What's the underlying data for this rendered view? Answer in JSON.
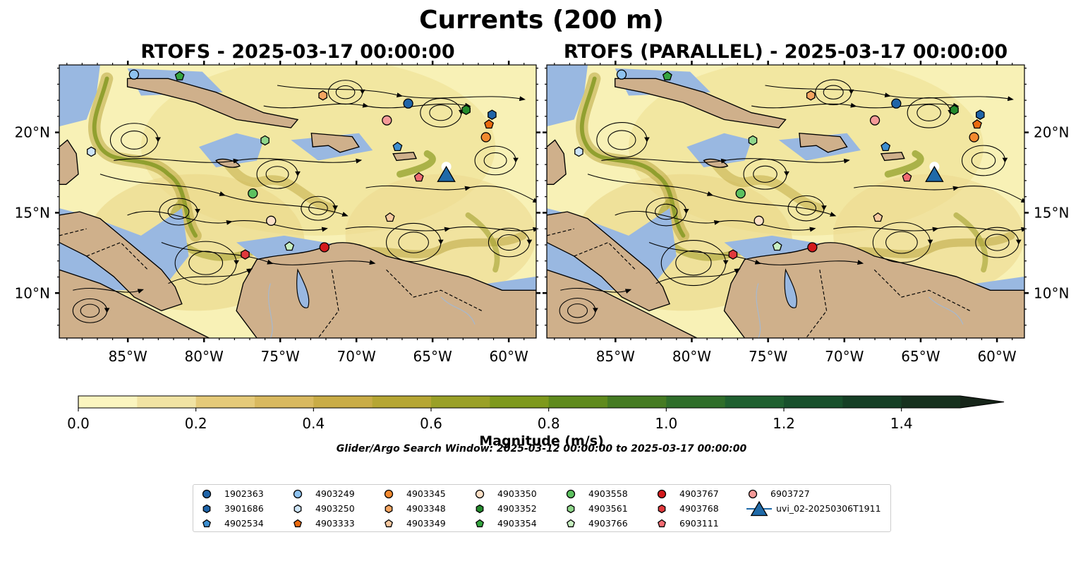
{
  "figure": {
    "suptitle": "Currents (200 m)",
    "panels": [
      {
        "title": "RTOFS - 2025-03-17 00:00:00"
      },
      {
        "title": "RTOFS (PARALLEL) - 2025-03-17 00:00:00"
      }
    ],
    "lon_ticks": [
      "85°W",
      "80°W",
      "75°W",
      "70°W",
      "65°W",
      "60°W"
    ],
    "lat_ticks": [
      "20°N",
      "15°N",
      "10°N"
    ],
    "extent": {
      "lon": [
        -89.5,
        -58.2
      ],
      "lat": [
        7.2,
        24.2
      ]
    },
    "colorbar": {
      "label": "Magnitude (m/s)",
      "ticks": [
        "0.0",
        "0.2",
        "0.4",
        "0.6",
        "0.8",
        "1.0",
        "1.2",
        "1.4"
      ],
      "range": [
        0,
        1.5
      ],
      "colors": [
        "#fbf5bf",
        "#f1e3a3",
        "#e5ca79",
        "#d9b95f",
        "#c9ac46",
        "#b6a633",
        "#9aa027",
        "#7e991d",
        "#5f8a1c",
        "#457b22",
        "#2f6e2a",
        "#1f6030",
        "#18502c",
        "#153f25",
        "#16311e",
        "#162519"
      ]
    },
    "search_window": "Glider/Argo Search Window: 2025-03-12 00:00:00 to 2025-03-17 00:00:00",
    "colors": {
      "land": "#cfb08b",
      "shallow": "#99b8e1",
      "ocean_low": "#f8f1b6",
      "ocean_mid": "#d7be68",
      "ocean_high": "#6f8f1e"
    }
  },
  "legend": [
    {
      "id": "1902363",
      "marker": "circle",
      "color": "#1f64a8"
    },
    {
      "id": "3901686",
      "marker": "hexagon",
      "color": "#1f64a8"
    },
    {
      "id": "4902534",
      "marker": "pentagon",
      "color": "#3d8fd0"
    },
    {
      "id": "4903249",
      "marker": "circle",
      "color": "#8ec2ef"
    },
    {
      "id": "4903250",
      "marker": "hexagon",
      "color": "#cde4f7"
    },
    {
      "id": "4903333",
      "marker": "pentagon",
      "color": "#ea6a0e"
    },
    {
      "id": "4903345",
      "marker": "circle",
      "color": "#f2892f"
    },
    {
      "id": "4903348",
      "marker": "hexagon",
      "color": "#f5a561"
    },
    {
      "id": "4903349",
      "marker": "pentagon",
      "color": "#f8c9a0"
    },
    {
      "id": "4903350",
      "marker": "circle",
      "color": "#fde0c6"
    },
    {
      "id": "4903352",
      "marker": "hexagon",
      "color": "#248a2c"
    },
    {
      "id": "4903354",
      "marker": "pentagon",
      "color": "#35a540"
    },
    {
      "id": "4903558",
      "marker": "circle",
      "color": "#5cc05f"
    },
    {
      "id": "4903561",
      "marker": "hexagon",
      "color": "#8fd68a"
    },
    {
      "id": "4903766",
      "marker": "pentagon",
      "color": "#c8efc1"
    },
    {
      "id": "4903767",
      "marker": "circle",
      "color": "#d3191c"
    },
    {
      "id": "4903768",
      "marker": "hexagon",
      "color": "#e0393c"
    },
    {
      "id": "6903111",
      "marker": "pentagon",
      "color": "#f26b72"
    },
    {
      "id": "6903727",
      "marker": "circle",
      "color": "#f59a98"
    },
    {
      "id": "uvi_02-20250306T1911",
      "marker": "triangle-line",
      "color": "#1f6aa8"
    }
  ],
  "glider_track": {
    "id": "uvi_02-20250306T1911",
    "lon": -64.1,
    "lat": 17.25
  },
  "floats": [
    {
      "id": "4903249",
      "lon": -84.6,
      "lat": 23.6
    },
    {
      "id": "4903354",
      "lon": -81.6,
      "lat": 23.5
    },
    {
      "id": "4903250",
      "lon": -87.4,
      "lat": 18.8
    },
    {
      "id": "4903348",
      "lon": -72.2,
      "lat": 22.3
    },
    {
      "id": "1902363",
      "lon": -66.6,
      "lat": 21.8
    },
    {
      "id": "4903352",
      "lon": -62.8,
      "lat": 21.4
    },
    {
      "id": "3901686",
      "lon": -61.1,
      "lat": 21.1
    },
    {
      "id": "4903333",
      "lon": -61.3,
      "lat": 20.5
    },
    {
      "id": "4903345",
      "lon": -61.5,
      "lat": 19.7
    },
    {
      "id": "6903727",
      "lon": -68.0,
      "lat": 20.75
    },
    {
      "id": "4902534",
      "lon": -67.3,
      "lat": 19.1
    },
    {
      "id": "4903561",
      "lon": -76.0,
      "lat": 19.5
    },
    {
      "id": "6903111",
      "lon": -65.9,
      "lat": 17.2
    },
    {
      "id": "4903558",
      "lon": -76.8,
      "lat": 16.2
    },
    {
      "id": "4903349",
      "lon": -67.8,
      "lat": 14.7
    },
    {
      "id": "4903350",
      "lon": -75.6,
      "lat": 14.5
    },
    {
      "id": "4903766",
      "lon": -74.4,
      "lat": 12.9
    },
    {
      "id": "4903768",
      "lon": -77.3,
      "lat": 12.4
    },
    {
      "id": "4903767",
      "lon": -72.1,
      "lat": 12.85
    }
  ]
}
